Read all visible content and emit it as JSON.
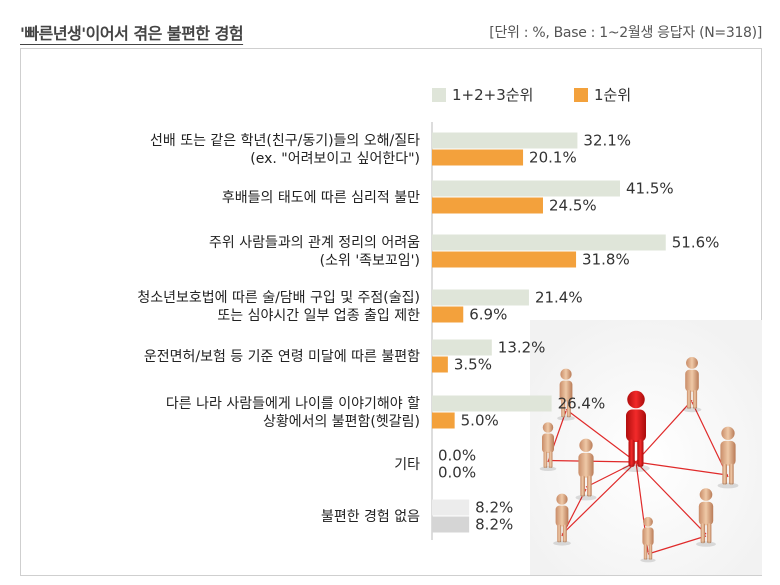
{
  "header": {
    "title": "'빠른년생'이어서 겪은 불편한 경험",
    "unit": "[단위 : %, Base : 1~2월생 응답자 (N=318)]"
  },
  "chart_data": {
    "type": "bar",
    "orientation": "horizontal",
    "categories": [
      [
        "선배 또는 같은 학년(친구/동기)들의 오해/질타",
        "(ex. \"어려보이고 싶어한다\")"
      ],
      [
        "후배들의 태도에 따른 심리적 불만"
      ],
      [
        "주위 사람들과의 관계 정리의 어려움",
        "(소위 '족보꼬임')"
      ],
      [
        "청소년보호법에 따른 술/담배 구입 및 주점(술집)",
        "또는 심야시간 일부 업종 출입 제한"
      ],
      [
        "운전면허/보험 등 기준 연령 미달에 따른 불편함"
      ],
      [
        "다른 나라 사람들에게 나이를 이야기해야 할",
        "상황에서의 불편함(헷갈림)"
      ],
      [
        "기타"
      ],
      [
        "불편한 경험 없음"
      ]
    ],
    "series": [
      {
        "name": "1+2+3순위",
        "color": "#dfe5d9",
        "values": [
          32.1,
          41.5,
          51.6,
          21.4,
          13.2,
          26.4,
          0.0,
          8.2
        ]
      },
      {
        "name": "1순위",
        "color": "#f3a13c",
        "values": [
          20.1,
          24.5,
          31.8,
          6.9,
          3.5,
          5.0,
          0.0,
          8.2
        ]
      }
    ],
    "special_colors": {
      "none_series1": "#ececec",
      "none_series2": "#d5d5d5"
    },
    "value_labels": [
      [
        "32.1%",
        "20.1%"
      ],
      [
        "41.5%",
        "24.5%"
      ],
      [
        "51.6%",
        "31.8%"
      ],
      [
        "21.4%",
        "6.9%"
      ],
      [
        "13.2%",
        "3.5%"
      ],
      [
        "26.4%",
        "5.0%"
      ],
      [
        "0.0%",
        "0.0%"
      ],
      [
        "8.2%",
        "8.2%"
      ]
    ],
    "legend_position": "top",
    "xlim": [
      0,
      55
    ]
  },
  "illustration": {
    "icon": "people-network-photo"
  }
}
